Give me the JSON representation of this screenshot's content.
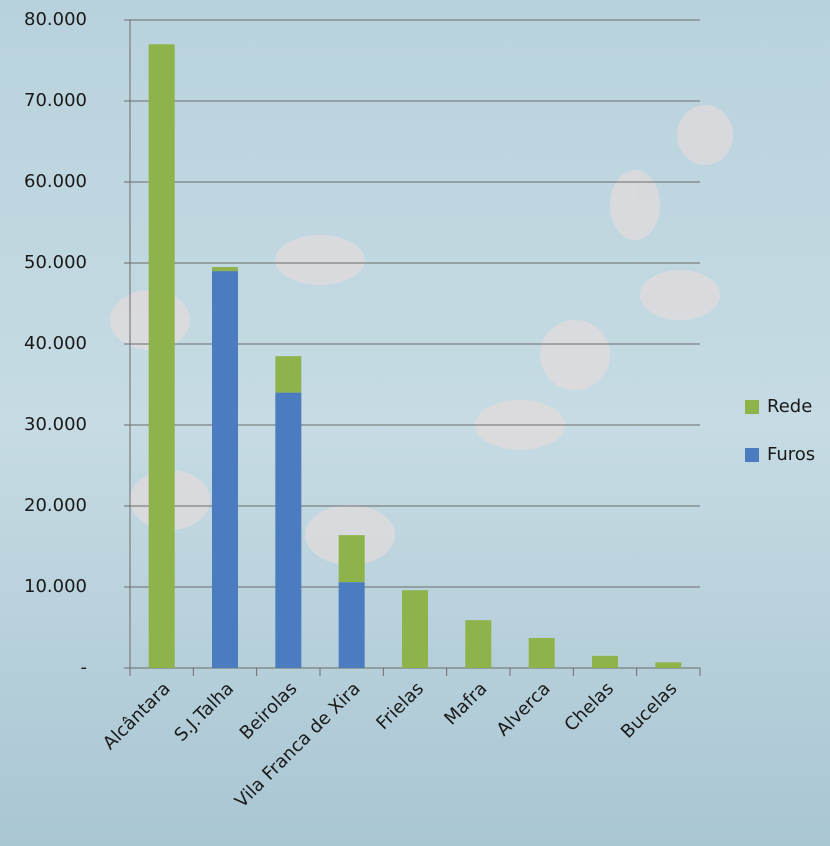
{
  "chart_data": {
    "type": "stacked_bar",
    "categories": [
      "Alcântara",
      "S.J.Talha",
      "Beirolas",
      "Vila Franca de Xira",
      "Frielas",
      "Mafra",
      "Alverca",
      "Chelas",
      "Bucelas"
    ],
    "series": [
      {
        "name": "Rede",
        "color": "#8db34a",
        "values": [
          77000,
          500,
          4500,
          5800,
          9600,
          5900,
          3700,
          1500,
          700
        ]
      },
      {
        "name": "Furos",
        "color": "#4a7cbf",
        "values": [
          0,
          49000,
          34000,
          10600,
          0,
          0,
          0,
          0,
          0
        ]
      }
    ],
    "ylim": [
      0,
      80000
    ],
    "yticks": [
      {
        "value": 0,
        "label": "-"
      },
      {
        "value": 10000,
        "label": "10.000"
      },
      {
        "value": 20000,
        "label": "20.000"
      },
      {
        "value": 30000,
        "label": "30.000"
      },
      {
        "value": 40000,
        "label": "40.000"
      },
      {
        "value": 50000,
        "label": "50.000"
      },
      {
        "value": 60000,
        "label": "60.000"
      },
      {
        "value": 70000,
        "label": "70.000"
      },
      {
        "value": 80000,
        "label": "80.000"
      }
    ],
    "grid": true,
    "legend": "right"
  }
}
